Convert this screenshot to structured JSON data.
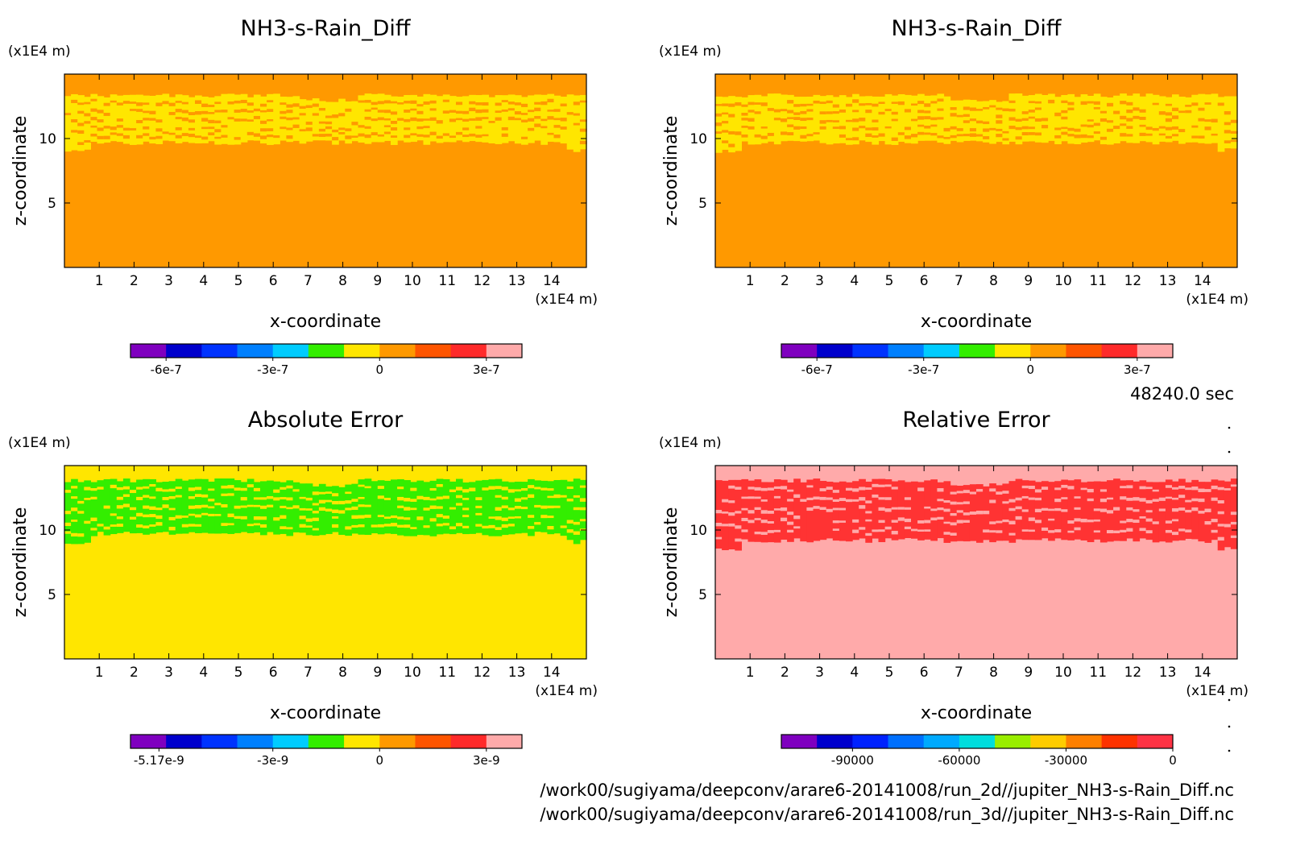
{
  "time_label": "48240.0 sec",
  "file_paths": [
    "/work00/sugiyama/deepconv/arare6-20141008/run_2d//jupiter_NH3-s-Rain_Diff.nc",
    "/work00/sugiyama/deepconv/arare6-20141008/run_3d//jupiter_NH3-s-Rain_Diff.nc"
  ],
  "chart_data": [
    {
      "type": "heatmap",
      "title": "NH3-s-Rain_Diff",
      "xlabel": "x-coordinate",
      "ylabel": "z-coordinate",
      "x_unit": "(x1E4 m)",
      "y_unit": "(x1E4 m)",
      "xlim": [
        0,
        15
      ],
      "ylim": [
        0,
        15
      ],
      "xticks": [
        1,
        2,
        3,
        4,
        5,
        6,
        7,
        8,
        9,
        10,
        11,
        12,
        13,
        14
      ],
      "yticks": [
        5,
        10
      ],
      "background_color": "#ff9900",
      "band_color": "#ffe600",
      "band_z": [
        9.5,
        13.5
      ],
      "colorbar": {
        "colors": [
          "#7f00bf",
          "#0000cc",
          "#0033ff",
          "#0080ff",
          "#00ccff",
          "#33ee00",
          "#ffe600",
          "#ff9900",
          "#ff5500",
          "#ff2a2a",
          "#ffaaaa"
        ],
        "tick_labels": [
          "-6e-7",
          "-3e-7",
          "0",
          "3e-7"
        ]
      }
    },
    {
      "type": "heatmap",
      "title": "NH3-s-Rain_Diff",
      "xlabel": "x-coordinate",
      "ylabel": "z-coordinate",
      "x_unit": "(x1E4 m)",
      "y_unit": "(x1E4 m)",
      "xlim": [
        0,
        15
      ],
      "ylim": [
        0,
        15
      ],
      "xticks": [
        1,
        2,
        3,
        4,
        5,
        6,
        7,
        8,
        9,
        10,
        11,
        12,
        13,
        14
      ],
      "yticks": [
        5,
        10
      ],
      "background_color": "#ff9900",
      "band_color": "#ffe600",
      "band_z": [
        9.5,
        13.5
      ],
      "colorbar": {
        "colors": [
          "#7f00bf",
          "#0000cc",
          "#0033ff",
          "#0080ff",
          "#00ccff",
          "#33ee00",
          "#ffe600",
          "#ff9900",
          "#ff5500",
          "#ff2a2a",
          "#ffaaaa"
        ],
        "tick_labels": [
          "-6e-7",
          "-3e-7",
          "0",
          "3e-7"
        ]
      }
    },
    {
      "type": "heatmap",
      "title": "Absolute Error",
      "xlabel": "x-coordinate",
      "ylabel": "z-coordinate",
      "x_unit": "(x1E4 m)",
      "y_unit": "(x1E4 m)",
      "xlim": [
        0,
        15
      ],
      "ylim": [
        0,
        15
      ],
      "xticks": [
        1,
        2,
        3,
        4,
        5,
        6,
        7,
        8,
        9,
        10,
        11,
        12,
        13,
        14
      ],
      "yticks": [
        5,
        10
      ],
      "background_color": "#ffe600",
      "band_color": "#33ee00",
      "band_z": [
        9.5,
        14
      ],
      "colorbar": {
        "colors": [
          "#7f00bf",
          "#0000cc",
          "#0033ff",
          "#0080ff",
          "#00ccff",
          "#33ee00",
          "#ffe600",
          "#ff9900",
          "#ff5500",
          "#ff2a2a",
          "#ffaaaa"
        ],
        "tick_labels": [
          "-5.17e-9",
          "-3e-9",
          "0",
          "3e-9"
        ]
      }
    },
    {
      "type": "heatmap",
      "title": "Relative Error",
      "xlabel": "x-coordinate",
      "ylabel": "z-coordinate",
      "x_unit": "(x1E4 m)",
      "y_unit": "(x1E4 m)",
      "xlim": [
        0,
        15
      ],
      "ylim": [
        0,
        15
      ],
      "xticks": [
        1,
        2,
        3,
        4,
        5,
        6,
        7,
        8,
        9,
        10,
        11,
        12,
        13,
        14
      ],
      "yticks": [
        5,
        10
      ],
      "background_color": "#ffaaaa",
      "band_color": "#ff3333",
      "band_z": [
        9,
        14
      ],
      "colorbar": {
        "colors": [
          "#7f00bf",
          "#0000cc",
          "#0022ff",
          "#0070ff",
          "#00aaff",
          "#00dddd",
          "#99ee00",
          "#ffcc00",
          "#ff8000",
          "#ff3300",
          "#ff3344"
        ],
        "tick_labels": [
          "-90000",
          "-60000",
          "-30000",
          "0"
        ]
      }
    }
  ]
}
